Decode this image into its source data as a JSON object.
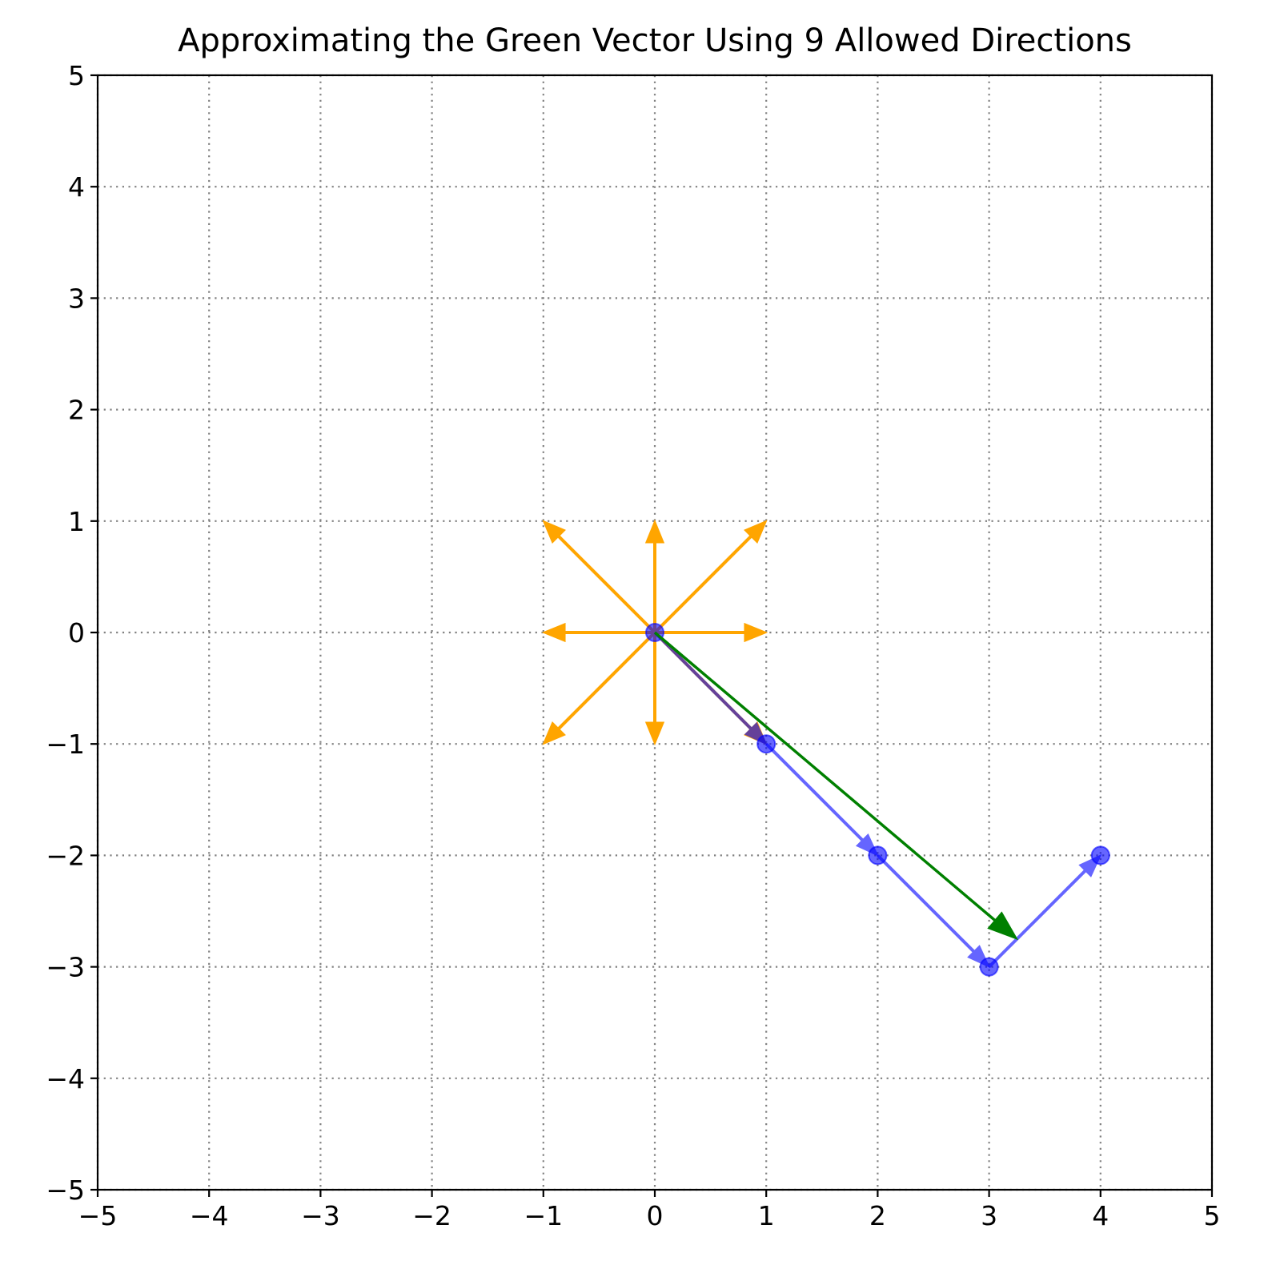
{
  "chart_data": {
    "type": "vector",
    "title": "Approximating the Green Vector Using 9 Allowed Directions",
    "xlabel": "",
    "ylabel": "",
    "xlim": [
      -5,
      5
    ],
    "ylim": [
      -5,
      5
    ],
    "xticks": [
      -5,
      -4,
      -3,
      -2,
      -1,
      0,
      1,
      2,
      3,
      4,
      5
    ],
    "yticks": [
      -5,
      -4,
      -3,
      -2,
      -1,
      0,
      1,
      2,
      3,
      4,
      5
    ],
    "xtick_labels": [
      "−5",
      "−4",
      "−3",
      "−2",
      "−1",
      "0",
      "1",
      "2",
      "3",
      "4",
      "5"
    ],
    "ytick_labels": [
      "−5",
      "−4",
      "−3",
      "−2",
      "−1",
      "0",
      "1",
      "2",
      "3",
      "4",
      "5"
    ],
    "grid": true,
    "grid_style": "dotted",
    "allowed_directions": {
      "color": "#ffa500",
      "origin": [
        0,
        0
      ],
      "vectors": [
        [
          1,
          0
        ],
        [
          1,
          1
        ],
        [
          0,
          1
        ],
        [
          -1,
          1
        ],
        [
          -1,
          0
        ],
        [
          -1,
          -1
        ],
        [
          0,
          -1
        ],
        [
          1,
          -1
        ],
        [
          0,
          0
        ]
      ]
    },
    "target_vector": {
      "color": "#008000",
      "start": [
        0,
        0
      ],
      "end": [
        3.25,
        -2.75
      ]
    },
    "approximation_path": {
      "color": "#0000ff",
      "points": [
        [
          0,
          0
        ],
        [
          1,
          -1
        ],
        [
          2,
          -2
        ],
        [
          3,
          -3
        ],
        [
          4,
          -2
        ]
      ]
    }
  }
}
